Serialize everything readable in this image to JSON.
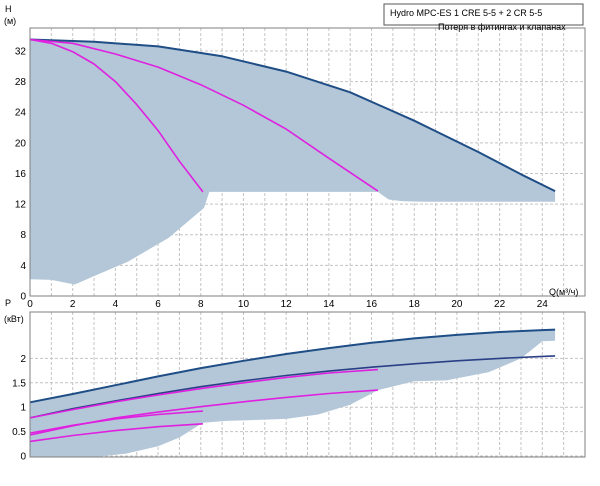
{
  "colors": {
    "band": "#b3c7d8",
    "main_curve": "#1f4e86",
    "dark_curve": "#2a3f86",
    "magenta": "#e020e0",
    "grid": "#c4c4c4",
    "frame": "#7f7f7f"
  },
  "legend": {
    "title": "Hydro MPC-ES 1 CRE 5-5  +  2 CR 5-5",
    "subtitle": "Потеря в фитингах и клапанах"
  },
  "chart_data": [
    {
      "type": "area",
      "title": "",
      "ylabel_line1": "H",
      "ylabel_line2": "(м)",
      "xlabel": "Q(м³/ч)",
      "xlim": [
        0,
        26
      ],
      "ylim": [
        0,
        35
      ],
      "x_ticks": [
        0,
        2,
        4,
        6,
        8,
        10,
        12,
        14,
        16,
        18,
        20,
        22,
        24
      ],
      "x_tick_labels": [
        "0",
        "2",
        "4",
        "6",
        "8",
        "10",
        "12",
        "14",
        "16",
        "18",
        "20",
        "22",
        "24"
      ],
      "y_ticks": [
        0,
        4,
        8,
        12,
        16,
        20,
        24,
        28,
        32
      ],
      "y_tick_labels": [
        "0",
        "4",
        "8",
        "12",
        "16",
        "20",
        "24",
        "28",
        "32"
      ],
      "grid": true,
      "band_outline": [
        [
          0,
          33.5
        ],
        [
          3,
          33.2
        ],
        [
          6,
          32.6
        ],
        [
          9,
          31.3
        ],
        [
          12,
          29.3
        ],
        [
          15,
          26.6
        ],
        [
          18,
          22.9
        ],
        [
          21,
          18.8
        ],
        [
          23,
          15.9
        ],
        [
          24.6,
          13.7
        ],
        [
          24.6,
          12.3
        ],
        [
          18.4,
          12.3
        ],
        [
          17.4,
          12.4
        ],
        [
          16.8,
          12.6
        ],
        [
          16.3,
          13.6
        ],
        [
          8.4,
          13.6
        ],
        [
          8.15,
          11.5
        ],
        [
          6.5,
          7.6
        ],
        [
          4.6,
          4.5
        ],
        [
          3,
          2.6
        ],
        [
          2.1,
          1.5
        ],
        [
          1,
          2.1
        ],
        [
          0,
          2.2
        ]
      ],
      "series": [
        {
          "style": "main",
          "x": [
            0,
            3,
            6,
            9,
            12,
            15,
            18,
            21,
            23,
            24.6
          ],
          "y": [
            33.5,
            33.2,
            32.6,
            31.3,
            29.3,
            26.6,
            22.9,
            18.8,
            15.9,
            13.7
          ]
        },
        {
          "style": "magenta",
          "x": [
            0,
            1,
            2,
            3,
            4,
            5,
            6,
            7,
            8.1
          ],
          "y": [
            33.5,
            33.0,
            31.9,
            30.3,
            28.0,
            25.0,
            21.6,
            17.6,
            13.6
          ]
        },
        {
          "style": "magenta",
          "x": [
            0,
            2,
            4,
            6,
            8,
            10,
            12,
            14,
            16.3
          ],
          "y": [
            33.5,
            33.0,
            31.6,
            29.9,
            27.6,
            24.9,
            21.8,
            18.0,
            13.7
          ]
        }
      ]
    },
    {
      "type": "area",
      "title": "",
      "ylabel_line1": "P",
      "ylabel_line2": "(кВт)",
      "xlabel": "",
      "xlim": [
        0,
        26
      ],
      "ylim": [
        -0.02,
        2.95
      ],
      "y_ticks": [
        0,
        0.5,
        1,
        1.5,
        2
      ],
      "y_tick_labels": [
        "0",
        "0.5",
        "1",
        "1.5",
        "2"
      ],
      "grid": true,
      "band_outline": [
        [
          0,
          1.1
        ],
        [
          2,
          1.27
        ],
        [
          4,
          1.45
        ],
        [
          6,
          1.63
        ],
        [
          8,
          1.8
        ],
        [
          10,
          1.95
        ],
        [
          12,
          2.09
        ],
        [
          14,
          2.21
        ],
        [
          16,
          2.32
        ],
        [
          18,
          2.41
        ],
        [
          20,
          2.48
        ],
        [
          22,
          2.54
        ],
        [
          24,
          2.58
        ],
        [
          24.6,
          2.59
        ],
        [
          24.6,
          2.36
        ],
        [
          24,
          2.35
        ],
        [
          23,
          2.0
        ],
        [
          21.5,
          1.72
        ],
        [
          19.5,
          1.55
        ],
        [
          18,
          1.53
        ],
        [
          16.3,
          1.35
        ],
        [
          15.0,
          1.05
        ],
        [
          13.5,
          0.85
        ],
        [
          12,
          0.76
        ],
        [
          10,
          0.73
        ],
        [
          9.2,
          0.72
        ],
        [
          8.1,
          0.68
        ],
        [
          7.0,
          0.38
        ],
        [
          6.0,
          0.2
        ],
        [
          4.5,
          0.05
        ],
        [
          3.0,
          -0.02
        ],
        [
          0,
          -0.02
        ]
      ],
      "series": [
        {
          "style": "main",
          "x": [
            0,
            2,
            4,
            6,
            8,
            10,
            12,
            14,
            16,
            18,
            20,
            22,
            24,
            24.6
          ],
          "y": [
            1.1,
            1.27,
            1.45,
            1.63,
            1.8,
            1.95,
            2.09,
            2.21,
            2.32,
            2.41,
            2.48,
            2.54,
            2.58,
            2.59
          ]
        },
        {
          "style": "dark",
          "x": [
            0,
            2,
            4,
            6,
            8,
            10,
            12,
            14,
            16,
            18,
            20,
            22,
            24,
            24.6
          ],
          "y": [
            0.78,
            0.97,
            1.13,
            1.28,
            1.42,
            1.54,
            1.65,
            1.74,
            1.82,
            1.89,
            1.95,
            2.0,
            2.04,
            2.05
          ]
        },
        {
          "style": "magenta",
          "x": [
            0,
            2,
            4,
            6,
            8,
            10,
            12,
            14,
            16.3
          ],
          "y": [
            0.78,
            0.95,
            1.11,
            1.25,
            1.38,
            1.5,
            1.61,
            1.7,
            1.77
          ]
        },
        {
          "style": "magenta",
          "x": [
            0,
            2,
            4,
            6,
            8,
            10,
            12,
            14,
            16.3
          ],
          "y": [
            0.43,
            0.62,
            0.78,
            0.9,
            1.01,
            1.11,
            1.2,
            1.28,
            1.35
          ]
        },
        {
          "style": "magenta",
          "x": [
            0,
            2,
            4,
            6,
            8.1
          ],
          "y": [
            0.47,
            0.63,
            0.76,
            0.85,
            0.92
          ]
        },
        {
          "style": "magenta",
          "x": [
            0,
            2,
            4,
            6,
            8.1
          ],
          "y": [
            0.3,
            0.42,
            0.52,
            0.6,
            0.66
          ]
        }
      ]
    }
  ]
}
